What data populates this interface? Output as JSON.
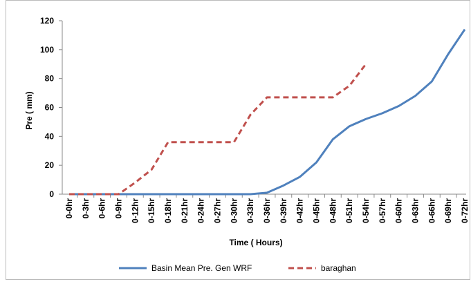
{
  "chart_data": {
    "type": "line",
    "x_label": "Time ( Hours)",
    "y_label": "Pre ( mm)",
    "categories": [
      "0-0hr",
      "0-3hr",
      "0-6hr",
      "0-9hr",
      "0-12hr",
      "0-15hr",
      "0-18hr",
      "0-21hr",
      "0-24hr",
      "0-27hr",
      "0-30hr",
      "0-33hr",
      "0-36hr",
      "0-39hr",
      "0-42hr",
      "0-45hr",
      "0-48hr",
      "0-51hr",
      "0-54hr",
      "0-57hr",
      "0-60hr",
      "0-63hr",
      "0-66hr",
      "0-69hr",
      "0-72hr"
    ],
    "series": [
      {
        "name": "Basin Mean Pre. Gen WRF",
        "color": "#4f81bd",
        "dash": false,
        "values": [
          0,
          0,
          0,
          0,
          0,
          0,
          0,
          0,
          0,
          0,
          0,
          0,
          1,
          6,
          12,
          22,
          38,
          47,
          52,
          56,
          61,
          68,
          78,
          97,
          114
        ]
      },
      {
        "name": "baraghan",
        "color": "#c0504d",
        "dash": true,
        "values": [
          0,
          0,
          0,
          0,
          8,
          17,
          36,
          36,
          36,
          36,
          36,
          55,
          67,
          67,
          67,
          67,
          67,
          75,
          90,
          null,
          null,
          null,
          null,
          null,
          null
        ]
      }
    ],
    "ylim": [
      0,
      120
    ],
    "yticks": [
      0,
      20,
      40,
      60,
      80,
      100,
      120
    ],
    "grid": false,
    "legend": "bottom"
  }
}
